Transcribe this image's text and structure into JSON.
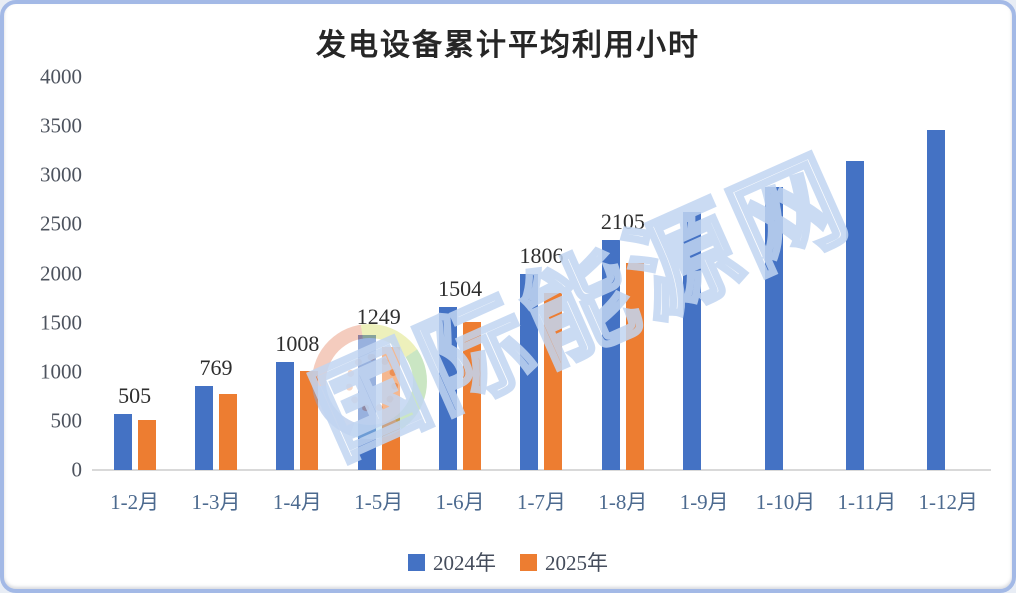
{
  "title": "发电设备累计平均利用小时",
  "watermark": {
    "text": "国际能源网"
  },
  "legend": [
    {
      "label": "2024年",
      "color": "#4472C4"
    },
    {
      "label": "2025年",
      "color": "#ED7D31"
    }
  ],
  "colors": {
    "series_2024": "#4472C4",
    "series_2025": "#ED7D31",
    "axis_line": "#D9D9D9",
    "border": "#A3B9E6",
    "title_text": "#262626",
    "x_label_text": "#4C6A8F",
    "y_label_text": "#4D535E"
  },
  "chart_data": {
    "type": "bar",
    "title": "发电设备累计平均利用小时",
    "categories": [
      "1-2月",
      "1-3月",
      "1-4月",
      "1-5月",
      "1-6月",
      "1-7月",
      "1-8月",
      "1-9月",
      "1-10月",
      "1-11月",
      "1-12月"
    ],
    "series": [
      {
        "name": "2024年",
        "color": "#4472C4",
        "values": [
          570,
          855,
          1100,
          1375,
          1660,
          2000,
          2340,
          2625,
          2880,
          3145,
          3460
        ]
      },
      {
        "name": "2025年",
        "color": "#ED7D31",
        "values": [
          505,
          769,
          1008,
          1249,
          1504,
          1806,
          2105,
          null,
          null,
          null,
          null
        ]
      }
    ],
    "data_labels": [
      505,
      769,
      1008,
      1249,
      1504,
      1806,
      2105,
      null,
      null,
      null,
      null
    ],
    "xlabel": "",
    "ylabel": "",
    "ylim": [
      0,
      4000
    ],
    "yticks": [
      0,
      500,
      1000,
      1500,
      2000,
      2500,
      3000,
      3500,
      4000
    ],
    "grid": false,
    "legend_position": "bottom"
  }
}
